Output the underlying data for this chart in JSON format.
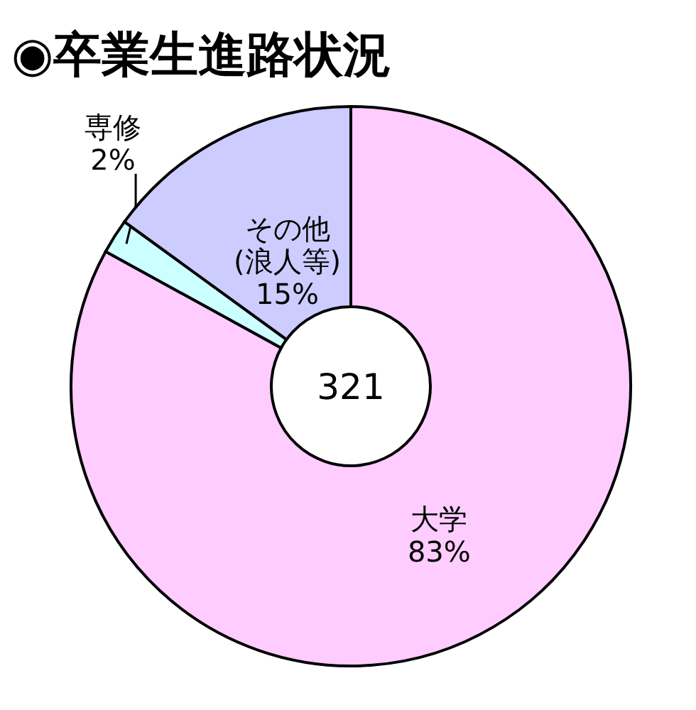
{
  "chart_data": {
    "type": "donut",
    "title": "◉卒業生進路状況",
    "categories": [
      "大学",
      "専修",
      "その他\n(浪人等)"
    ],
    "values": [
      83,
      2,
      15
    ],
    "colors": [
      "#ffccff",
      "#ccffff",
      "#ccccff"
    ],
    "value_labels": [
      "83%",
      "2%",
      "15%"
    ],
    "annotations": [
      "321"
    ]
  }
}
